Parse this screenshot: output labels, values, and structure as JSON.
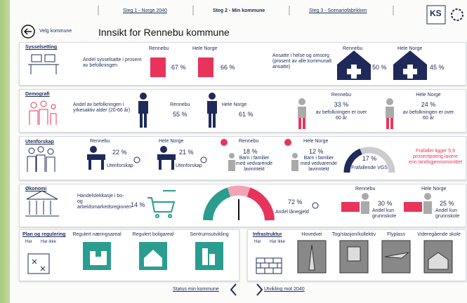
{
  "nav": {
    "steps": [
      "Steg 1 - Norge 2040",
      "Steg 2 - Min kommune",
      "Steg 3 - Scenariofabrikken"
    ],
    "logo": "KS"
  },
  "header": {
    "back": "Velg kommune",
    "title": "Innsikt for Rennebu kommune"
  },
  "sysselsetting": {
    "label": "Sysselsetting",
    "desc1": "Andel sysselsatte i prosent av befolkningen",
    "local1": "Rennebu",
    "localValue1": "67 %",
    "national1": "Hele Norge",
    "nationalValue1": "66 %",
    "desc2": "Ansatte i helse og omsorg (prosent av alle kommunalt ansatte)",
    "local2": "Rennebu",
    "localValue2": "50 %",
    "national2": "Hele Norge",
    "nationalValue2": "45 %"
  },
  "demografi": {
    "label": "Demografi",
    "desc1": "Andel av befolkningen i yrkesaktiv alder (20-66 år)",
    "local1": "Rennebu",
    "localValue1": "55 %",
    "national1": "Hele Norge",
    "nationalValue1": "61 %",
    "local2": "Rennebu",
    "localValue2": "33 %",
    "localText2": "av befolkningen er over 60 år",
    "national2": "Hele Norge",
    "nationalValue2": "24 %",
    "nationalText2": "av befolkningen er over 60 år"
  },
  "utenforskap": {
    "label": "Utenforskap",
    "local1": "Rennebu",
    "localValue1": "22 %",
    "localText1": "Utenforskap",
    "national1": "Hele Norge",
    "nationalValue1": "21 %",
    "nationalText1": "Utenforskap",
    "local2": "Rennebu",
    "localValue2": "18 %",
    "localText2": "Barn i familier med vedvarende lavinntekt",
    "national2": "Hele Norge",
    "nationalValue2": "12 %",
    "nationalText2": "Barn i familier med vedvarende lavinntekt",
    "gaugeValue": "17 %",
    "gaugeText": "Frafallende VGS",
    "note": "Frafallet ligger 5,9 prosentpoeng lavere enn landsgjennomsnittet"
  },
  "okonomi": {
    "label": "Økonomi",
    "desc1": "Handelslekkasje i bo- og arbeidsmarkedsregionen",
    "value1": "14 %",
    "value2": "72 %",
    "text2": "Andel lånegjeld",
    "local3": "Rennebu",
    "localValue3": "30 %",
    "localText3": "Andel kun grunnskole",
    "national3": "Hele Norge",
    "nationalValue3": "25 %",
    "nationalText3": "Andel kun grunnskole"
  },
  "plan": {
    "label": "Plan og regulering",
    "legend": [
      "Har",
      "Har ikke"
    ],
    "items": [
      "Regulert næringsareal",
      "Regulert boligareal",
      "Sentrumsutvikling"
    ]
  },
  "infrastruktur": {
    "label": "Infrastruktur",
    "legend": [
      "Har",
      "Har ikke"
    ],
    "items": [
      "Hovedvei",
      "Tog/stasjon/kollektiv",
      "Flyplass",
      "Videregående skole"
    ]
  },
  "footer": {
    "prev": "Status min kommune",
    "next": "Utvikling mot 2040"
  }
}
